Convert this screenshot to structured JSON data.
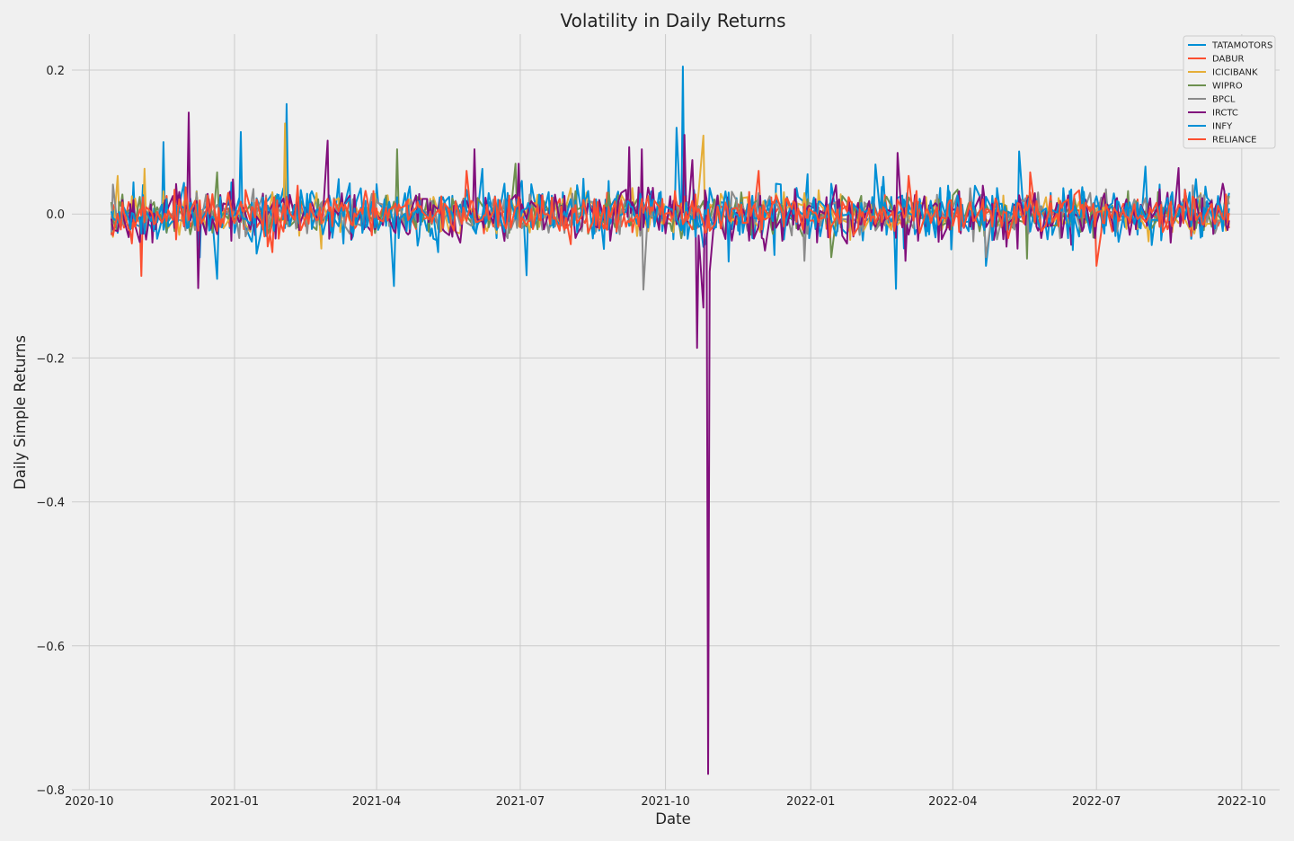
{
  "chart_data": {
    "type": "line",
    "title": "Volatility in Daily Returns",
    "xlabel": "Date",
    "ylabel": "Daily Simple Returns",
    "xlim": [
      "2020-09-20",
      "2022-10-25"
    ],
    "ylim": [
      -0.8,
      0.25
    ],
    "x_ticks": [
      "2020-10",
      "2021-01",
      "2021-04",
      "2021-07",
      "2021-10",
      "2022-01",
      "2022-04",
      "2022-07",
      "2022-10"
    ],
    "y_ticks": [
      0.2,
      0.0,
      -0.2,
      -0.4,
      -0.6,
      -0.8
    ],
    "y_tick_labels": [
      "0.2",
      "0.0",
      "−0.2",
      "−0.4",
      "−0.6",
      "−0.8"
    ],
    "grid": true,
    "legend_position": "top-right",
    "x_start": "2020-10-15",
    "x_end": "2022-09-23",
    "series": [
      {
        "name": "TATAMOTORS",
        "color": "#008fd5",
        "amplitude": 0.022,
        "seed": 11,
        "spikes": [
          [
            "2020-11-17",
            0.1
          ],
          [
            "2020-12-20",
            -0.09
          ],
          [
            "2021-01-05",
            0.114
          ],
          [
            "2021-02-03",
            0.153
          ],
          [
            "2021-04-11",
            -0.1
          ],
          [
            "2021-07-05",
            -0.085
          ],
          [
            "2021-10-12",
            0.205
          ],
          [
            "2021-10-08",
            0.12
          ],
          [
            "2022-02-24",
            -0.104
          ],
          [
            "2022-04-22",
            -0.072
          ],
          [
            "2022-05-14",
            0.087
          ],
          [
            "2022-08-01",
            0.066
          ]
        ]
      },
      {
        "name": "DABUR",
        "color": "#fc4f30",
        "amplitude": 0.012,
        "seed": 23,
        "spikes": [
          [
            "2020-11-03",
            -0.086
          ],
          [
            "2021-01-25",
            -0.053
          ],
          [
            "2021-05-28",
            0.06
          ],
          [
            "2021-11-29",
            0.06
          ],
          [
            "2022-07-01",
            -0.072
          ],
          [
            "2022-05-20",
            0.058
          ]
        ]
      },
      {
        "name": "ICICIBANK",
        "color": "#e5ae38",
        "amplitude": 0.014,
        "seed": 37,
        "spikes": [
          [
            "2020-10-18",
            0.053
          ],
          [
            "2020-11-05",
            0.063
          ],
          [
            "2021-02-02",
            0.126
          ],
          [
            "2021-02-25",
            -0.048
          ],
          [
            "2021-10-24",
            0.109
          ]
        ]
      },
      {
        "name": "WIPRO",
        "color": "#6d904f",
        "amplitude": 0.013,
        "seed": 41,
        "spikes": [
          [
            "2020-12-21",
            0.058
          ],
          [
            "2021-04-14",
            0.09
          ],
          [
            "2021-06-28",
            0.07
          ],
          [
            "2022-01-15",
            -0.06
          ],
          [
            "2022-05-18",
            -0.062
          ]
        ]
      },
      {
        "name": "BPCL",
        "color": "#8b8b8b",
        "amplitude": 0.014,
        "seed": 53,
        "spikes": [
          [
            "2020-10-16",
            0.041
          ],
          [
            "2021-09-18",
            -0.105
          ],
          [
            "2021-12-28",
            -0.065
          ],
          [
            "2022-04-23",
            -0.06
          ],
          [
            "2022-08-31",
            0.04
          ]
        ]
      },
      {
        "name": "IRCTC",
        "color": "#810f7c",
        "amplitude": 0.018,
        "seed": 67,
        "spikes": [
          [
            "2020-12-03",
            0.141
          ],
          [
            "2020-12-09",
            -0.103
          ],
          [
            "2021-02-28",
            0.102
          ],
          [
            "2021-06-02",
            0.09
          ],
          [
            "2021-06-30",
            0.07
          ],
          [
            "2021-09-08",
            0.093
          ],
          [
            "2021-09-16",
            0.09
          ],
          [
            "2021-10-13",
            0.11
          ],
          [
            "2021-10-18",
            0.075
          ],
          [
            "2021-10-21",
            -0.186
          ],
          [
            "2021-10-25",
            -0.13
          ],
          [
            "2021-10-28",
            -0.778
          ],
          [
            "2021-10-29",
            -0.08
          ],
          [
            "2022-02-25",
            0.085
          ],
          [
            "2022-03-02",
            -0.065
          ],
          [
            "2022-08-22",
            0.064
          ]
        ]
      },
      {
        "name": "INFY",
        "color": "#008fd5",
        "amplitude": 0.015,
        "seed": 79,
        "spikes": [
          [
            "2021-01-15",
            -0.055
          ],
          [
            "2021-05-10",
            -0.053
          ],
          [
            "2021-11-10",
            -0.066
          ],
          [
            "2022-02-12",
            0.069
          ],
          [
            "2022-06-16",
            -0.05
          ]
        ]
      },
      {
        "name": "RELIANCE",
        "color": "#fc4f30",
        "amplitude": 0.014,
        "seed": 97,
        "spikes": [
          [
            "2021-01-22",
            -0.045
          ],
          [
            "2021-08-01",
            -0.042
          ],
          [
            "2022-03-05",
            0.053
          ],
          [
            "2022-08-12",
            -0.025
          ]
        ]
      }
    ]
  }
}
